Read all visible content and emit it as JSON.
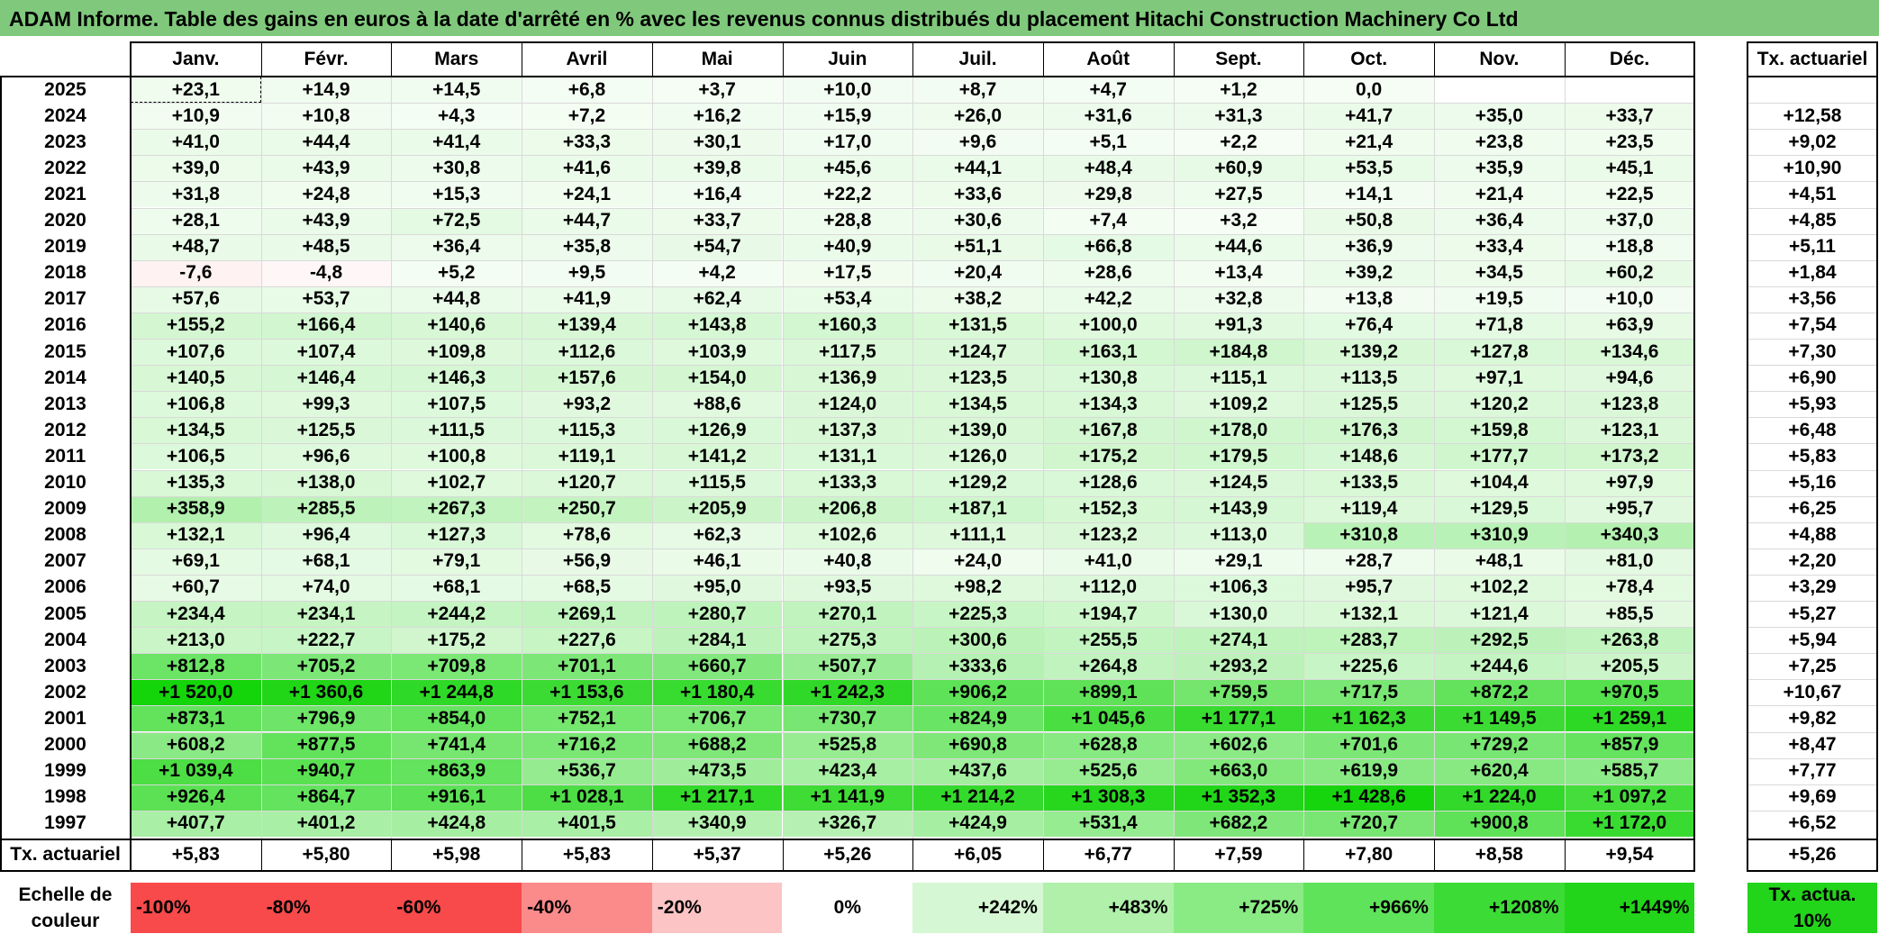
{
  "title": "ADAM Informe. Table des gains en euros à la date d'arrêté en % avec les revenus connus distribués du placement Hitachi Construction Machinery Co Ltd",
  "months": [
    "Janv.",
    "Févr.",
    "Mars",
    "Avril",
    "Mai",
    "Juin",
    "Juil.",
    "Août",
    "Sept.",
    "Oct.",
    "Nov.",
    "Déc."
  ],
  "rate_header": "Tx. actuariel",
  "rows": [
    {
      "year": "2025",
      "cells": [
        "+23,1",
        "+14,9",
        "+14,5",
        "+6,8",
        "+3,7",
        "+10,0",
        "+8,7",
        "+4,7",
        "+1,2",
        "0,0",
        "",
        ""
      ],
      "rate": ""
    },
    {
      "year": "2024",
      "cells": [
        "+10,9",
        "+10,8",
        "+4,3",
        "+7,2",
        "+16,2",
        "+15,9",
        "+26,0",
        "+31,6",
        "+31,3",
        "+41,7",
        "+35,0",
        "+33,7"
      ],
      "rate": "+12,58"
    },
    {
      "year": "2023",
      "cells": [
        "+41,0",
        "+44,4",
        "+41,4",
        "+33,3",
        "+30,1",
        "+17,0",
        "+9,6",
        "+5,1",
        "+2,2",
        "+21,4",
        "+23,8",
        "+23,5"
      ],
      "rate": "+9,02"
    },
    {
      "year": "2022",
      "cells": [
        "+39,0",
        "+43,9",
        "+30,8",
        "+41,6",
        "+39,8",
        "+45,6",
        "+44,1",
        "+48,4",
        "+60,9",
        "+53,5",
        "+35,9",
        "+45,1"
      ],
      "rate": "+10,90"
    },
    {
      "year": "2021",
      "cells": [
        "+31,8",
        "+24,8",
        "+15,3",
        "+24,1",
        "+16,4",
        "+22,2",
        "+33,6",
        "+29,8",
        "+27,5",
        "+14,1",
        "+21,4",
        "+22,5"
      ],
      "rate": "+4,51"
    },
    {
      "year": "2020",
      "cells": [
        "+28,1",
        "+43,9",
        "+72,5",
        "+44,7",
        "+33,7",
        "+28,8",
        "+30,6",
        "+7,4",
        "+3,2",
        "+50,8",
        "+36,4",
        "+37,0"
      ],
      "rate": "+4,85"
    },
    {
      "year": "2019",
      "cells": [
        "+48,7",
        "+48,5",
        "+36,4",
        "+35,8",
        "+54,7",
        "+40,9",
        "+51,1",
        "+66,8",
        "+44,6",
        "+36,9",
        "+33,4",
        "+18,8"
      ],
      "rate": "+5,11"
    },
    {
      "year": "2018",
      "cells": [
        "-7,6",
        "-4,8",
        "+5,2",
        "+9,5",
        "+4,2",
        "+17,5",
        "+20,4",
        "+28,6",
        "+13,4",
        "+39,2",
        "+34,5",
        "+60,2"
      ],
      "rate": "+1,84"
    },
    {
      "year": "2017",
      "cells": [
        "+57,6",
        "+53,7",
        "+44,8",
        "+41,9",
        "+62,4",
        "+53,4",
        "+38,2",
        "+42,2",
        "+32,8",
        "+13,8",
        "+19,5",
        "+10,0"
      ],
      "rate": "+3,56"
    },
    {
      "year": "2016",
      "cells": [
        "+155,2",
        "+166,4",
        "+140,6",
        "+139,4",
        "+143,8",
        "+160,3",
        "+131,5",
        "+100,0",
        "+91,3",
        "+76,4",
        "+71,8",
        "+63,9"
      ],
      "rate": "+7,54"
    },
    {
      "year": "2015",
      "cells": [
        "+107,6",
        "+107,4",
        "+109,8",
        "+112,6",
        "+103,9",
        "+117,5",
        "+124,7",
        "+163,1",
        "+184,8",
        "+139,2",
        "+127,8",
        "+134,6"
      ],
      "rate": "+7,30"
    },
    {
      "year": "2014",
      "cells": [
        "+140,5",
        "+146,4",
        "+146,3",
        "+157,6",
        "+154,0",
        "+136,9",
        "+123,5",
        "+130,8",
        "+115,1",
        "+113,5",
        "+97,1",
        "+94,6"
      ],
      "rate": "+6,90"
    },
    {
      "year": "2013",
      "cells": [
        "+106,8",
        "+99,3",
        "+107,5",
        "+93,2",
        "+88,6",
        "+124,0",
        "+134,5",
        "+134,3",
        "+109,2",
        "+125,5",
        "+120,2",
        "+123,8"
      ],
      "rate": "+5,93"
    },
    {
      "year": "2012",
      "cells": [
        "+134,5",
        "+125,5",
        "+111,5",
        "+115,3",
        "+126,9",
        "+137,3",
        "+139,0",
        "+167,8",
        "+178,0",
        "+176,3",
        "+159,8",
        "+123,1"
      ],
      "rate": "+6,48"
    },
    {
      "year": "2011",
      "cells": [
        "+106,5",
        "+96,6",
        "+100,8",
        "+119,1",
        "+141,2",
        "+131,1",
        "+126,0",
        "+175,2",
        "+179,5",
        "+148,6",
        "+177,7",
        "+173,2"
      ],
      "rate": "+5,83"
    },
    {
      "year": "2010",
      "cells": [
        "+135,3",
        "+138,0",
        "+102,7",
        "+120,7",
        "+115,5",
        "+133,3",
        "+129,2",
        "+128,6",
        "+124,5",
        "+133,5",
        "+104,4",
        "+97,9"
      ],
      "rate": "+5,16"
    },
    {
      "year": "2009",
      "cells": [
        "+358,9",
        "+285,5",
        "+267,3",
        "+250,7",
        "+205,9",
        "+206,8",
        "+187,1",
        "+152,3",
        "+143,9",
        "+119,4",
        "+129,5",
        "+95,7"
      ],
      "rate": "+6,25"
    },
    {
      "year": "2008",
      "cells": [
        "+132,1",
        "+96,4",
        "+127,3",
        "+78,6",
        "+62,3",
        "+102,6",
        "+111,1",
        "+123,2",
        "+113,0",
        "+310,8",
        "+310,9",
        "+340,3"
      ],
      "rate": "+4,88"
    },
    {
      "year": "2007",
      "cells": [
        "+69,1",
        "+68,1",
        "+79,1",
        "+56,9",
        "+46,1",
        "+40,8",
        "+24,0",
        "+41,0",
        "+29,1",
        "+28,7",
        "+48,1",
        "+81,0"
      ],
      "rate": "+2,20"
    },
    {
      "year": "2006",
      "cells": [
        "+60,7",
        "+74,0",
        "+68,1",
        "+68,5",
        "+95,0",
        "+93,5",
        "+98,2",
        "+112,0",
        "+106,3",
        "+95,7",
        "+102,2",
        "+78,4"
      ],
      "rate": "+3,29"
    },
    {
      "year": "2005",
      "cells": [
        "+234,4",
        "+234,1",
        "+244,2",
        "+269,1",
        "+280,7",
        "+270,1",
        "+225,3",
        "+194,7",
        "+130,0",
        "+132,1",
        "+121,4",
        "+85,5"
      ],
      "rate": "+5,27"
    },
    {
      "year": "2004",
      "cells": [
        "+213,0",
        "+222,7",
        "+175,2",
        "+227,6",
        "+284,1",
        "+275,3",
        "+300,6",
        "+255,5",
        "+274,1",
        "+283,7",
        "+292,5",
        "+263,8"
      ],
      "rate": "+5,94"
    },
    {
      "year": "2003",
      "cells": [
        "+812,8",
        "+705,2",
        "+709,8",
        "+701,1",
        "+660,7",
        "+507,7",
        "+333,6",
        "+264,8",
        "+293,2",
        "+225,6",
        "+244,6",
        "+205,5"
      ],
      "rate": "+7,25"
    },
    {
      "year": "2002",
      "cells": [
        "+1 520,0",
        "+1 360,6",
        "+1 244,8",
        "+1 153,6",
        "+1 180,4",
        "+1 242,3",
        "+906,2",
        "+899,1",
        "+759,5",
        "+717,5",
        "+872,2",
        "+970,5"
      ],
      "rate": "+10,67"
    },
    {
      "year": "2001",
      "cells": [
        "+873,1",
        "+796,9",
        "+854,0",
        "+752,1",
        "+706,7",
        "+730,7",
        "+824,9",
        "+1 045,6",
        "+1 177,1",
        "+1 162,3",
        "+1 149,5",
        "+1 259,1"
      ],
      "rate": "+9,82"
    },
    {
      "year": "2000",
      "cells": [
        "+608,2",
        "+877,5",
        "+741,4",
        "+716,2",
        "+688,2",
        "+525,8",
        "+690,8",
        "+628,8",
        "+602,6",
        "+701,6",
        "+729,2",
        "+857,9"
      ],
      "rate": "+8,47"
    },
    {
      "year": "1999",
      "cells": [
        "+1 039,4",
        "+940,7",
        "+863,9",
        "+536,7",
        "+473,5",
        "+423,4",
        "+437,6",
        "+525,6",
        "+663,0",
        "+619,9",
        "+620,4",
        "+585,7"
      ],
      "rate": "+7,77"
    },
    {
      "year": "1998",
      "cells": [
        "+926,4",
        "+864,7",
        "+916,1",
        "+1 028,1",
        "+1 217,1",
        "+1 141,9",
        "+1 214,2",
        "+1 308,3",
        "+1 352,3",
        "+1 428,6",
        "+1 224,0",
        "+1 097,2"
      ],
      "rate": "+9,69"
    },
    {
      "year": "1997",
      "cells": [
        "+407,7",
        "+401,2",
        "+424,8",
        "+401,5",
        "+340,9",
        "+326,7",
        "+424,9",
        "+531,4",
        "+682,2",
        "+720,7",
        "+900,8",
        "+1 172,0"
      ],
      "rate": "+6,52"
    }
  ],
  "footer": {
    "label": "Tx. actuariel",
    "cells": [
      "+5,83",
      "+5,80",
      "+5,98",
      "+5,83",
      "+5,37",
      "+5,26",
      "+6,05",
      "+6,77",
      "+7,59",
      "+7,80",
      "+8,58",
      "+9,54"
    ],
    "rate": "+5,26"
  },
  "scale": {
    "label": "Echelle de couleur",
    "steps": [
      {
        "text": "-100%",
        "color": "#f84a4a"
      },
      {
        "text": "-80%",
        "color": "#f84a4a"
      },
      {
        "text": "-60%",
        "color": "#f84a4a"
      },
      {
        "text": "-40%",
        "color": "#fb8a8a"
      },
      {
        "text": "-20%",
        "color": "#fcc4c4"
      },
      {
        "text": "0%",
        "color": "#ffffff"
      },
      {
        "text": "+242%",
        "color": "#d6f7d3"
      },
      {
        "text": "+483%",
        "color": "#b0f0aa"
      },
      {
        "text": "+725%",
        "color": "#8aea84"
      },
      {
        "text": "+966%",
        "color": "#5fe35a"
      },
      {
        "text": "+1208%",
        "color": "#3ddb36"
      },
      {
        "text": "+1449%",
        "color": "#22d41a"
      }
    ],
    "rate_box_text": "Tx. actua. 10%",
    "rate_box_color": "#22d41a"
  },
  "banner_color": "#80c97c"
}
